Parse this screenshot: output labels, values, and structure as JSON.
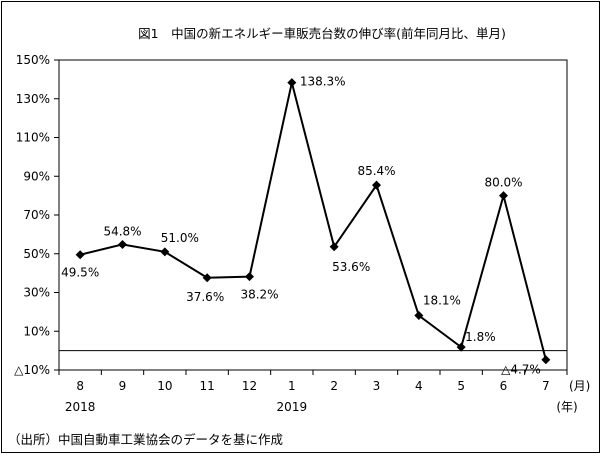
{
  "chart_data": {
    "type": "line",
    "title": "図1　中国の新エネルギー車販売台数の伸び率(前年同月比、単月)",
    "categories": [
      "8",
      "9",
      "10",
      "11",
      "12",
      "1",
      "2",
      "3",
      "4",
      "5",
      "6",
      "7"
    ],
    "year_labels": [
      {
        "category_index": 0,
        "label": "2018"
      },
      {
        "category_index": 5,
        "label": "2019"
      }
    ],
    "x_unit_month": "(月)",
    "x_unit_year": "(年)",
    "ylim": [
      -10,
      150
    ],
    "y_ticks": [
      {
        "value": 150,
        "label": "150%"
      },
      {
        "value": 130,
        "label": "130%"
      },
      {
        "value": 110,
        "label": "110%"
      },
      {
        "value": 90,
        "label": "90%"
      },
      {
        "value": 70,
        "label": "70%"
      },
      {
        "value": 50,
        "label": "50%"
      },
      {
        "value": 30,
        "label": "30%"
      },
      {
        "value": 10,
        "label": "10%"
      },
      {
        "value": -10,
        "label": "△10%"
      }
    ],
    "baseline": 0,
    "grid": false,
    "values": [
      49.5,
      54.8,
      51.0,
      37.6,
      38.2,
      138.3,
      53.6,
      85.4,
      18.1,
      1.8,
      80.0,
      -4.7
    ],
    "data_labels": [
      "49.5%",
      "54.8%",
      "51.0%",
      "37.6%",
      "38.2%",
      "138.3%",
      "53.6%",
      "85.4%",
      "18.1%",
      "1.8%",
      "80.0%",
      "△4.7%"
    ],
    "line_color": "#000000",
    "marker": "diamond"
  },
  "source_note": "（出所）中国自動車工業協会のデータを基に作成"
}
